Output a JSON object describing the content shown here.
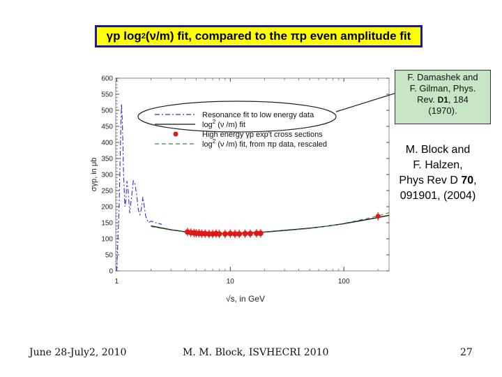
{
  "header": {
    "title_part1": "γp log",
    "title_sup": "2",
    "title_part2": "(ν/m) fit, compared to the πp even amplitude fit"
  },
  "callouts": {
    "small_line1": "F. Damashek and",
    "small_line2": "F. Gilman, Phys.",
    "small_line3_pre": "Rev. ",
    "small_line3_bold": "D1",
    "small_line3_post": ", 184",
    "small_line4": "(1970).",
    "big_line1": "M. Block and",
    "big_line2": "F. Halzen,",
    "big_line3_pre": "Phys Rev D ",
    "big_line3_bold": "70",
    "big_line3_post": ",",
    "big_line4": "091901, (2004)"
  },
  "footer": {
    "date": "June 28-July2, 2010",
    "author": "M. M. Block, ISVHECRI 2010",
    "page": "27"
  },
  "chart_data": {
    "type": "line",
    "xscale": "log",
    "xlim": [
      0.98,
      250
    ],
    "ylim": [
      0,
      600
    ],
    "xlabel": "√s, in GeV",
    "ylabel": "σγp, in μb",
    "x_ticks": [
      1,
      10,
      100
    ],
    "x_tick_labels": [
      "1",
      "10",
      "100"
    ],
    "y_ticks": [
      0,
      50,
      100,
      150,
      200,
      250,
      300,
      350,
      400,
      450,
      500,
      550,
      600
    ],
    "y_tick_labels": [
      "0",
      "50",
      "100",
      "150",
      "200",
      "250",
      "300",
      "350",
      "400",
      "450",
      "500",
      "550",
      "600"
    ],
    "legend": [
      "Resonance fit to low energy data",
      "log²(ν/m) fit",
      "High energy γp exp't cross sections",
      "log²(ν/m) fit, from πp data, rescaled"
    ],
    "legend_position": "top",
    "legend_sup": "2",
    "legend_labels_parts": [
      {
        "pre": "Resonance fit to low energy data"
      },
      {
        "pre": "log",
        "sup": "2",
        "post": " (ν /m) fit"
      },
      {
        "pre": "High energy γp exp't cross sections"
      },
      {
        "pre": "log",
        "sup": "2",
        "post": " (ν /m) fit, from πp data, rescaled"
      }
    ],
    "series": [
      {
        "name": "Resonance fit to low energy data",
        "style": "dash-dot",
        "color": "#2a2ad8",
        "x": [
          1.0,
          1.02,
          1.05,
          1.08,
          1.1,
          1.12,
          1.15,
          1.18,
          1.2,
          1.23,
          1.26,
          1.3,
          1.35,
          1.4,
          1.45,
          1.5,
          1.55,
          1.6,
          1.65,
          1.7,
          1.75,
          1.8,
          1.9,
          2.0,
          2.2,
          2.5
        ],
        "values": [
          0,
          80,
          200,
          410,
          520,
          470,
          300,
          200,
          215,
          280,
          250,
          180,
          230,
          280,
          270,
          235,
          190,
          175,
          195,
          230,
          200,
          170,
          150,
          155,
          150,
          145
        ]
      },
      {
        "name": "log²(ν/m) fit",
        "style": "solid",
        "color": "#111111",
        "x": [
          2,
          3,
          4,
          5,
          7,
          10,
          15,
          20,
          30,
          50,
          70,
          100,
          150,
          200,
          250
        ],
        "values": [
          140,
          128,
          122,
          119,
          117,
          117,
          119,
          121,
          126,
          133,
          139,
          147,
          158,
          166,
          173
        ]
      },
      {
        "name": "log²(ν/m) fit, from πp data, rescaled",
        "style": "dashed",
        "color": "#3a8a3a",
        "x": [
          2,
          3,
          4,
          5,
          7,
          10,
          15,
          20,
          30,
          50,
          70,
          100,
          150,
          200,
          250
        ],
        "values": [
          138,
          127,
          121,
          118,
          116,
          116,
          118,
          120,
          125,
          132,
          139,
          148,
          161,
          171,
          181
        ]
      },
      {
        "name": "High energy γp exp't cross sections",
        "style": "points",
        "color": "#e01818",
        "x": [
          4.2,
          4.5,
          4.8,
          5.0,
          5.3,
          5.6,
          6.0,
          6.5,
          7.0,
          7.5,
          8.0,
          9.0,
          10.0,
          11.0,
          12.0,
          13.5,
          15.0,
          17.0,
          18.5,
          200.0
        ],
        "values": [
          121,
          119,
          118,
          117,
          117,
          116,
          116,
          115,
          115,
          116,
          115,
          115,
          116,
          115,
          115,
          116,
          116,
          117,
          117,
          170
        ]
      }
    ]
  }
}
